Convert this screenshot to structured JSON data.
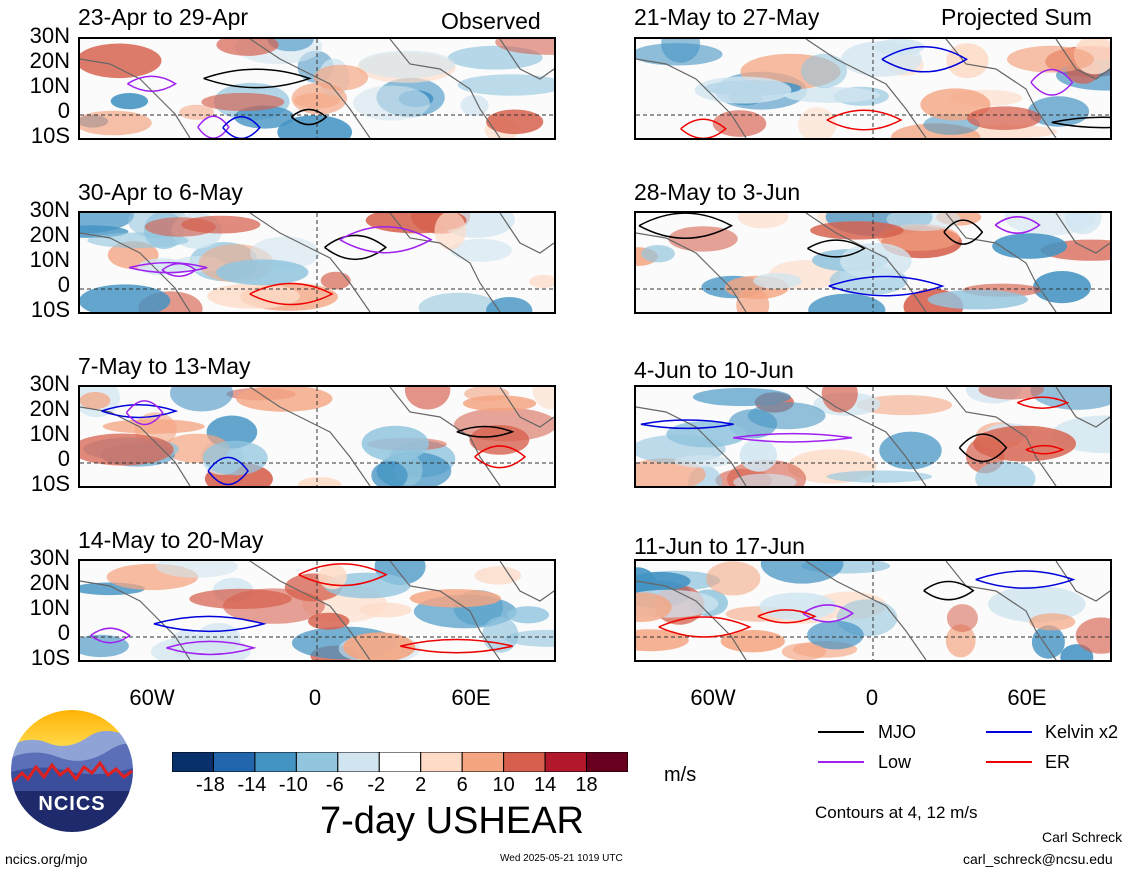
{
  "header": {
    "left_label": "Observed",
    "right_label": "Projected Sum"
  },
  "panels_left": [
    {
      "title": "23-Apr to 29-Apr"
    },
    {
      "title": "30-Apr to 6-May"
    },
    {
      "title": "7-May to 13-May"
    },
    {
      "title": "14-May to 20-May"
    }
  ],
  "panels_right": [
    {
      "title": "21-May to 27-May"
    },
    {
      "title": "28-May to 3-Jun"
    },
    {
      "title": "4-Jun to 10-Jun"
    },
    {
      "title": "11-Jun to 17-Jun"
    }
  ],
  "y_axis": [
    "30N",
    "20N",
    "10N",
    "0",
    "10S"
  ],
  "x_axis": [
    "60W",
    "0",
    "60E"
  ],
  "colorbar": {
    "ticks": [
      "-18",
      "-14",
      "-10",
      "-6",
      "-2",
      "2",
      "6",
      "10",
      "14",
      "18"
    ],
    "colors": [
      "#08306b",
      "#2166ac",
      "#4393c3",
      "#92c5de",
      "#d1e5f0",
      "#ffffff",
      "#fddbc7",
      "#f4a582",
      "#d6604d",
      "#b2182b",
      "#67001f"
    ],
    "units": "m/s",
    "title": "7-day USHEAR"
  },
  "legend": {
    "items": [
      {
        "label": "MJO",
        "color": "#000000"
      },
      {
        "label": "Kelvin x2",
        "color": "#0000dd"
      },
      {
        "label": "Low",
        "color": "#a020f0"
      },
      {
        "label": "ER",
        "color": "#ee0000"
      }
    ],
    "note": "Contours at 4, 12 m/s"
  },
  "logo": {
    "text": "NCICS"
  },
  "footer": {
    "left": "ncics.org/mjo",
    "center": "Wed 2025-05-21 1019 UTC",
    "author": "Carl Schreck",
    "email": "carl_schreck@ncsu.edu"
  }
}
